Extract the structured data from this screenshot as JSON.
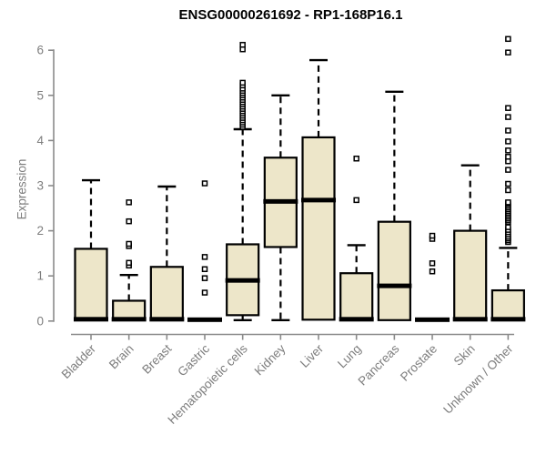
{
  "chart_data": {
    "type": "box",
    "title": "ENSG00000261692 - RP1-168P16.1",
    "ylabel": "Expression",
    "xlabel": "",
    "ylim": [
      0,
      6.3
    ],
    "y_ticks": [
      0,
      1,
      2,
      3,
      4,
      5,
      6
    ],
    "grid": false,
    "legend": "none",
    "categories": [
      "Bladder",
      "Brain",
      "Breast",
      "Gastric",
      "Hematopoietic cells",
      "Kidney",
      "Liver",
      "Lung",
      "Pancreas",
      "Prostate",
      "Skin",
      "Unknown / Other"
    ],
    "series": [
      {
        "category": "Bladder",
        "low": 0.02,
        "q1": 0.02,
        "median": 0.04,
        "q3": 1.6,
        "high": 3.12,
        "outliers": []
      },
      {
        "category": "Brain",
        "low": 0.02,
        "q1": 0.02,
        "median": 0.04,
        "q3": 0.45,
        "high": 1.02,
        "outliers": [
          1.23,
          1.29,
          1.66,
          1.71,
          2.21,
          2.63
        ]
      },
      {
        "category": "Breast",
        "low": 0.02,
        "q1": 0.02,
        "median": 0.04,
        "q3": 1.2,
        "high": 2.98,
        "outliers": []
      },
      {
        "category": "Gastric",
        "low": 0.02,
        "q1": 0.02,
        "median": 0.03,
        "q3": 0.05,
        "high": 0.05,
        "outliers": [
          0.63,
          0.95,
          1.15,
          1.42,
          3.05
        ]
      },
      {
        "category": "Hematopoietic cells",
        "low": 0.02,
        "q1": 0.13,
        "median": 0.9,
        "q3": 1.7,
        "high": 4.25,
        "outliers": [
          4.3,
          4.35,
          4.4,
          4.45,
          4.5,
          4.55,
          4.6,
          4.65,
          4.7,
          4.75,
          4.8,
          4.85,
          4.9,
          4.95,
          5.0,
          5.05,
          5.1,
          5.15,
          5.22,
          5.28,
          6.02,
          6.12
        ]
      },
      {
        "category": "Kidney",
        "low": 0.02,
        "q1": 1.64,
        "median": 2.65,
        "q3": 3.62,
        "high": 5.0,
        "outliers": []
      },
      {
        "category": "Liver",
        "low": 0.03,
        "q1": 0.03,
        "median": 2.68,
        "q3": 4.07,
        "high": 5.78,
        "outliers": []
      },
      {
        "category": "Lung",
        "low": 0.02,
        "q1": 0.02,
        "median": 0.04,
        "q3": 1.06,
        "high": 1.68,
        "outliers": [
          2.68,
          3.6
        ]
      },
      {
        "category": "Pancreas",
        "low": 0.02,
        "q1": 0.02,
        "median": 0.78,
        "q3": 2.2,
        "high": 5.08,
        "outliers": []
      },
      {
        "category": "Prostate",
        "low": 0.02,
        "q1": 0.02,
        "median": 0.03,
        "q3": 0.05,
        "high": 0.05,
        "outliers": [
          1.1,
          1.28,
          1.82,
          1.89
        ]
      },
      {
        "category": "Skin",
        "low": 0.02,
        "q1": 0.02,
        "median": 0.04,
        "q3": 2.0,
        "high": 3.45,
        "outliers": []
      },
      {
        "category": "Unknown / Other",
        "low": 0.02,
        "q1": 0.02,
        "median": 0.04,
        "q3": 0.68,
        "high": 1.62,
        "outliers": [
          1.75,
          1.79,
          1.83,
          1.87,
          1.92,
          1.97,
          2.02,
          2.08,
          2.2,
          2.24,
          2.28,
          2.32,
          2.36,
          2.4,
          2.44,
          2.48,
          2.52,
          2.56,
          2.6,
          2.63,
          2.9,
          3.04,
          3.35,
          3.54,
          3.64,
          3.78,
          3.98,
          4.22,
          4.52,
          4.72,
          5.95,
          6.25
        ]
      }
    ],
    "colors": {
      "box_fill": "#EDE6C9",
      "box_stroke": "#000000",
      "median": "#000000",
      "whisker": "#000000",
      "outlier_stroke": "#000000",
      "outlier_fill": "#FFFFFF",
      "axis": "#8A8A8A",
      "label": "#7D7D7D",
      "title": "#000000",
      "background": "#FFFFFF"
    }
  }
}
